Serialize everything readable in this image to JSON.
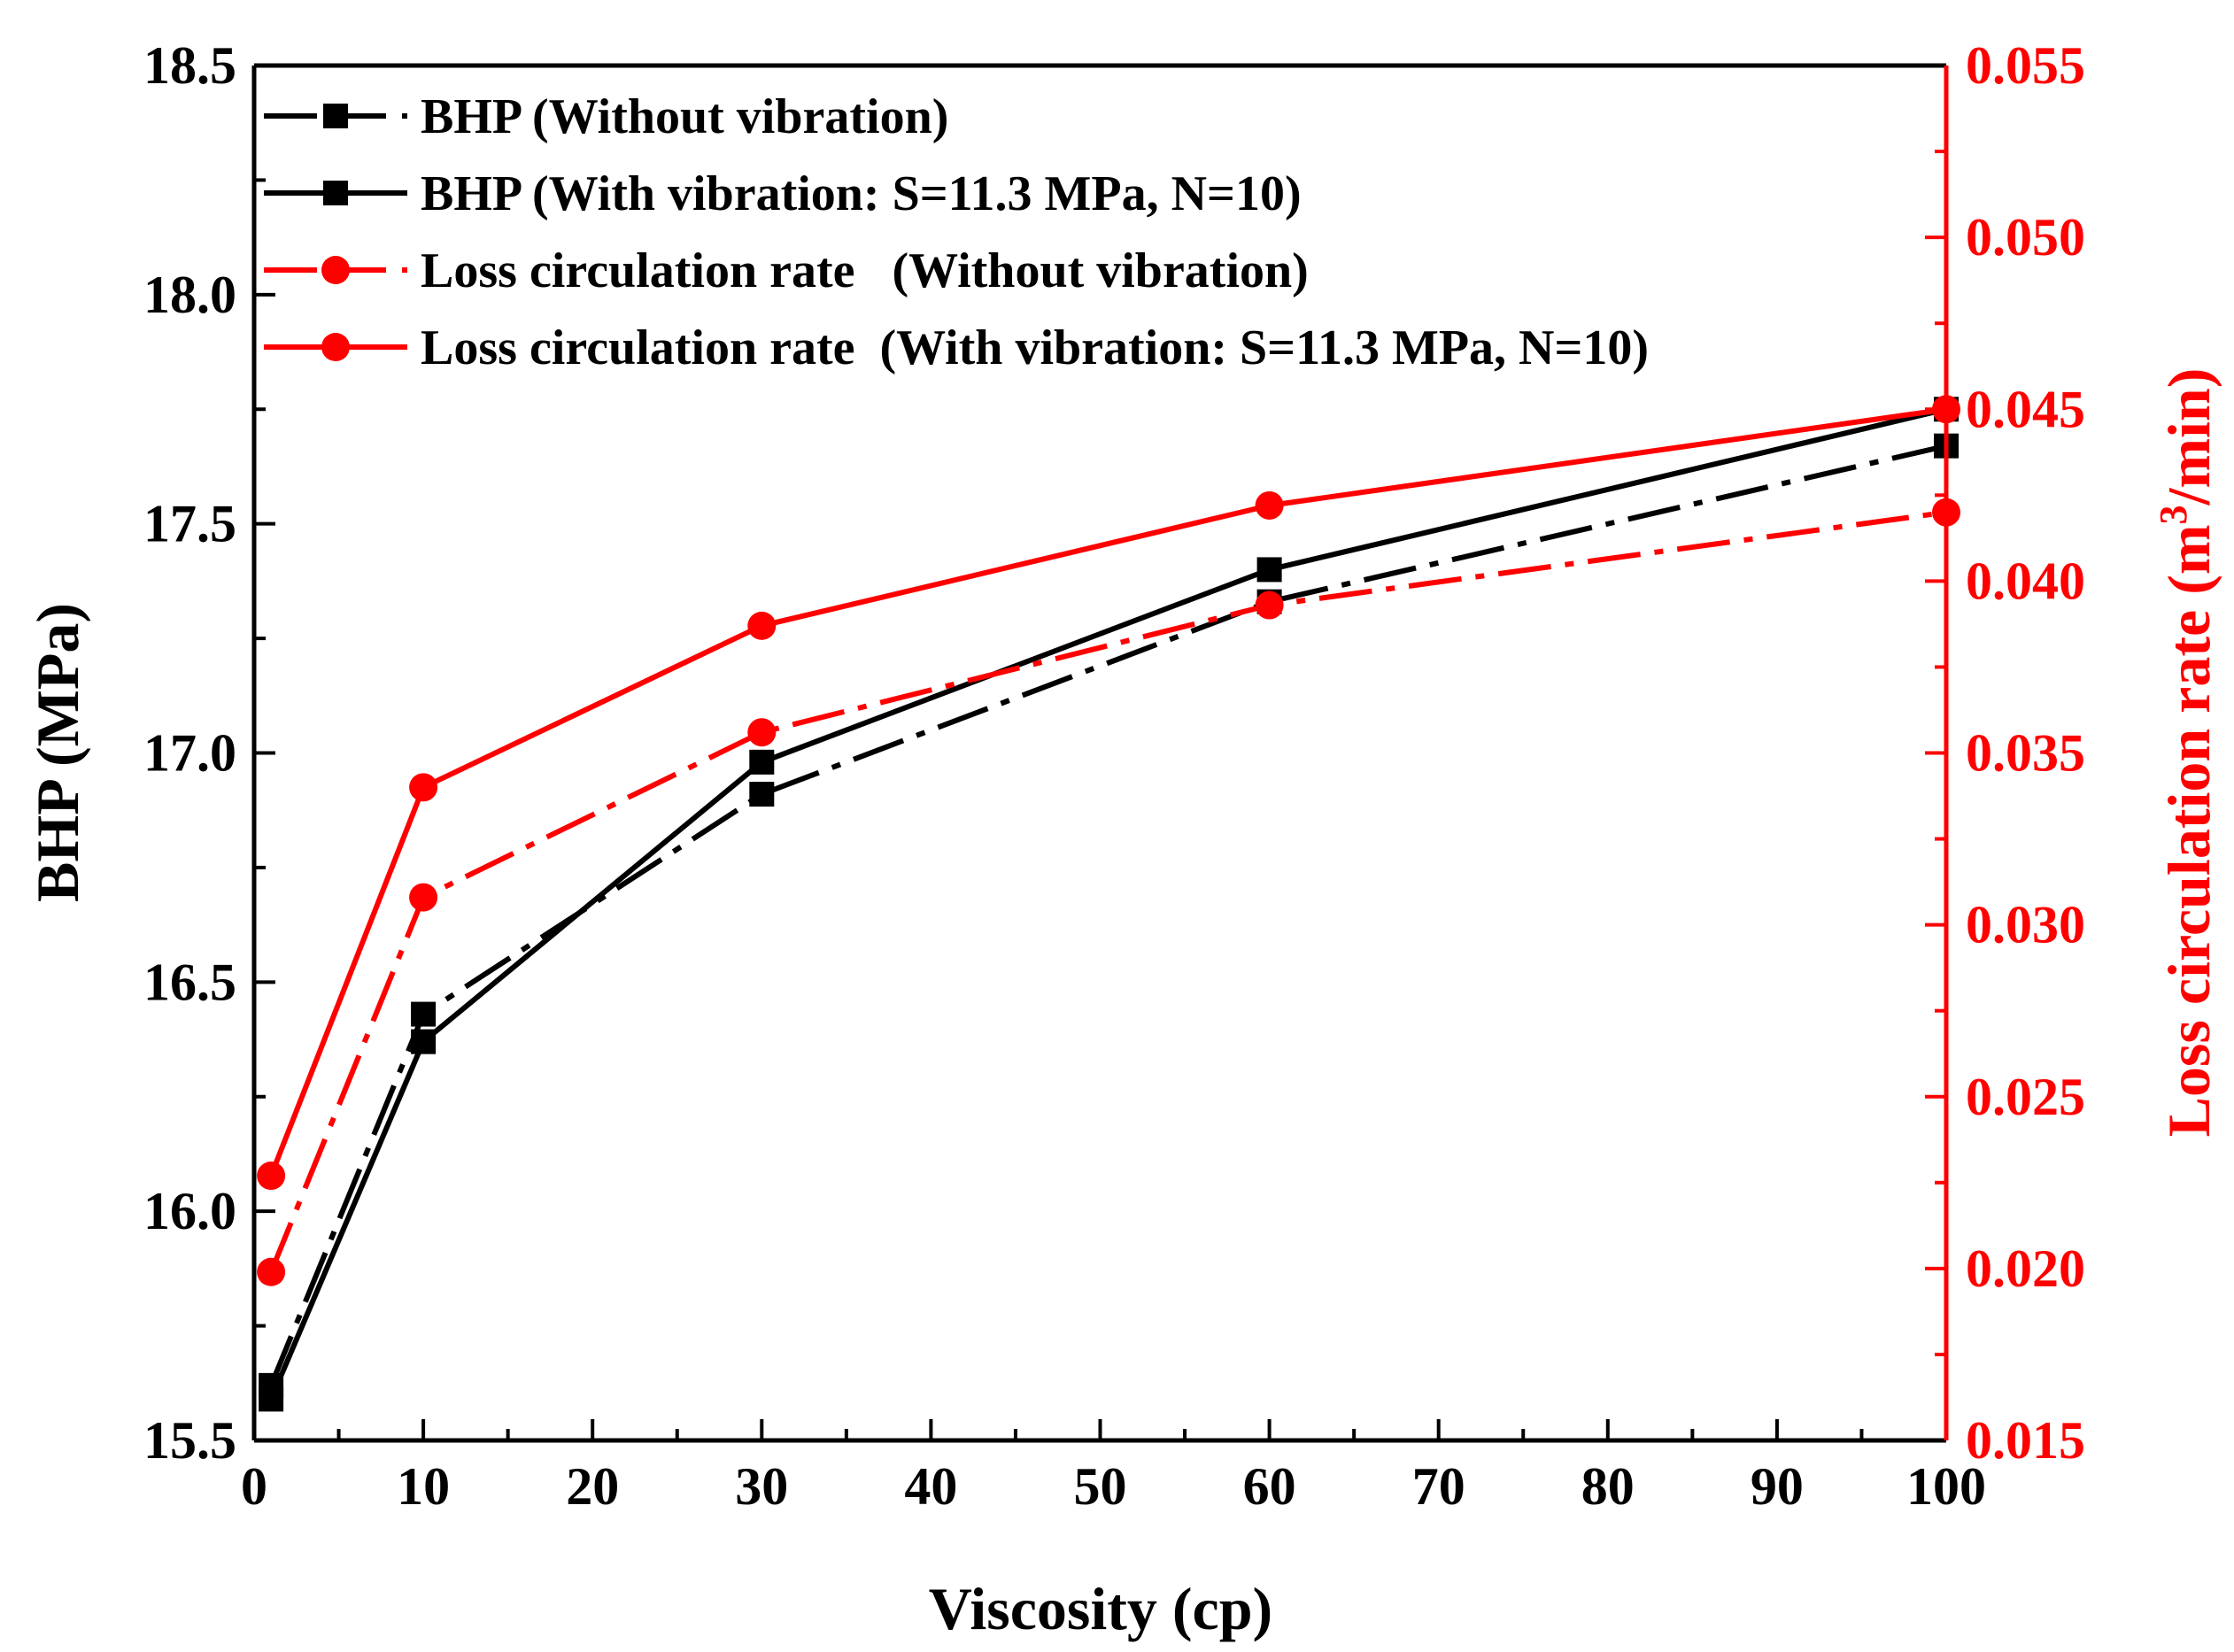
{
  "chart_data": {
    "type": "line",
    "xlabel": "Viscosity (cp)",
    "ylabel_left": "BHP (MPa)",
    "ylabel_right_main": "Loss circulation rate (m",
    "ylabel_right_sup": "3",
    "ylabel_right_tail": "/min)",
    "xlim": [
      0,
      100
    ],
    "ylim_left": [
      15.5,
      18.5
    ],
    "ylim_right": [
      0.015,
      0.055
    ],
    "x_ticks": [
      "0",
      "10",
      "20",
      "30",
      "40",
      "50",
      "60",
      "70",
      "80",
      "90",
      "100"
    ],
    "y_left_ticks": [
      "15.5",
      "16.0",
      "16.5",
      "17.0",
      "17.5",
      "18.0",
      "18.5"
    ],
    "y_right_ticks": [
      "0.015",
      "0.020",
      "0.025",
      "0.030",
      "0.035",
      "0.040",
      "0.045",
      "0.050",
      "0.055"
    ],
    "legend_position": "top-left",
    "series": [
      {
        "name": "BHP (Without vibration)",
        "axis": "left",
        "color": "#000000",
        "marker": "square",
        "line": "dashdot",
        "x": [
          1,
          10,
          30,
          60,
          100
        ],
        "y": [
          15.62,
          16.43,
          16.91,
          17.33,
          17.67
        ]
      },
      {
        "name": "BHP (With vibration: S=11.3 MPa, N=10)",
        "axis": "left",
        "color": "#000000",
        "marker": "square",
        "line": "solid",
        "x": [
          1,
          10,
          30,
          60,
          100
        ],
        "y": [
          15.59,
          16.37,
          16.98,
          17.4,
          17.75
        ]
      },
      {
        "name": "Loss circulation rate   (Without vibration)",
        "axis": "right",
        "color": "#ff0000",
        "marker": "circle",
        "line": "dashdot",
        "x": [
          1,
          10,
          30,
          60,
          100
        ],
        "y": [
          0.0199,
          0.0308,
          0.0356,
          0.0393,
          0.042
        ]
      },
      {
        "name": "Loss circulation rate  (With vibration: S=11.3 MPa, N=10)",
        "axis": "right",
        "color": "#ff0000",
        "marker": "circle",
        "line": "solid",
        "x": [
          1,
          10,
          30,
          60,
          100
        ],
        "y": [
          0.0227,
          0.034,
          0.0387,
          0.0422,
          0.045
        ]
      }
    ]
  }
}
